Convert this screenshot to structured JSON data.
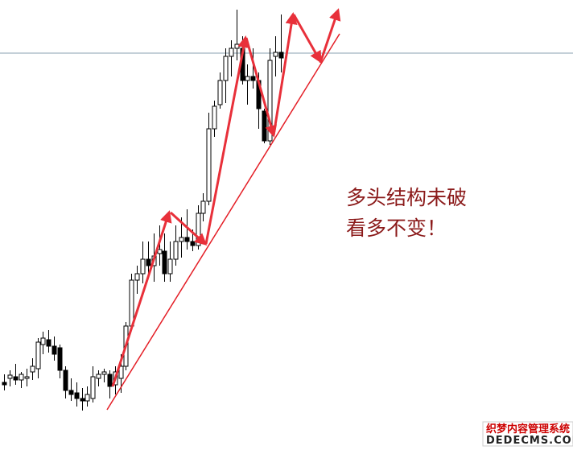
{
  "chart_data": {
    "type": "candlestick",
    "annotation": [
      "多头结构未破",
      "看多不变！"
    ],
    "watermark": [
      "织梦内容管理系统",
      "DEDECMS.COM"
    ],
    "ylim": [
      0,
      559
    ],
    "colors": {
      "up": "#ffffff",
      "down": "#000000",
      "outline": "#000000"
    },
    "open": [
      84,
      89,
      91,
      87,
      89,
      97,
      101,
      131,
      137,
      129,
      127,
      99,
      74,
      71,
      64,
      61,
      64,
      89,
      94,
      94,
      81,
      89,
      104,
      154,
      211,
      219,
      237,
      229,
      244,
      247,
      219,
      237,
      259,
      264,
      259,
      254,
      294,
      309,
      399,
      429,
      459,
      489,
      499,
      499,
      459,
      464,
      459,
      421,
      384,
      489,
      494
    ],
    "high": [
      94,
      99,
      107,
      97,
      101,
      114,
      139,
      147,
      149,
      141,
      131,
      104,
      89,
      84,
      77,
      79,
      104,
      99,
      101,
      99,
      104,
      119,
      159,
      219,
      229,
      259,
      259,
      269,
      279,
      269,
      259,
      279,
      289,
      299,
      274,
      304,
      319,
      419,
      434,
      469,
      499,
      509,
      547,
      514,
      479,
      499,
      469,
      424,
      499,
      514,
      541
    ],
    "low": [
      74,
      79,
      81,
      77,
      79,
      87,
      89,
      119,
      121,
      111,
      89,
      64,
      61,
      54,
      49,
      54,
      59,
      79,
      84,
      64,
      69,
      71,
      99,
      149,
      194,
      207,
      214,
      209,
      229,
      209,
      209,
      229,
      239,
      249,
      247,
      249,
      284,
      304,
      389,
      424,
      431,
      464,
      484,
      454,
      429,
      449,
      399,
      381,
      379,
      464,
      469
    ],
    "close": [
      81,
      93,
      87,
      94,
      91,
      104,
      134,
      139,
      129,
      119,
      99,
      74,
      69,
      64,
      61,
      69,
      91,
      94,
      97,
      79,
      97,
      104,
      154,
      211,
      219,
      237,
      229,
      241,
      249,
      219,
      237,
      259,
      264,
      259,
      254,
      294,
      309,
      399,
      427,
      459,
      489,
      499,
      504,
      459,
      464,
      459,
      424,
      384,
      484,
      494,
      487
    ]
  }
}
